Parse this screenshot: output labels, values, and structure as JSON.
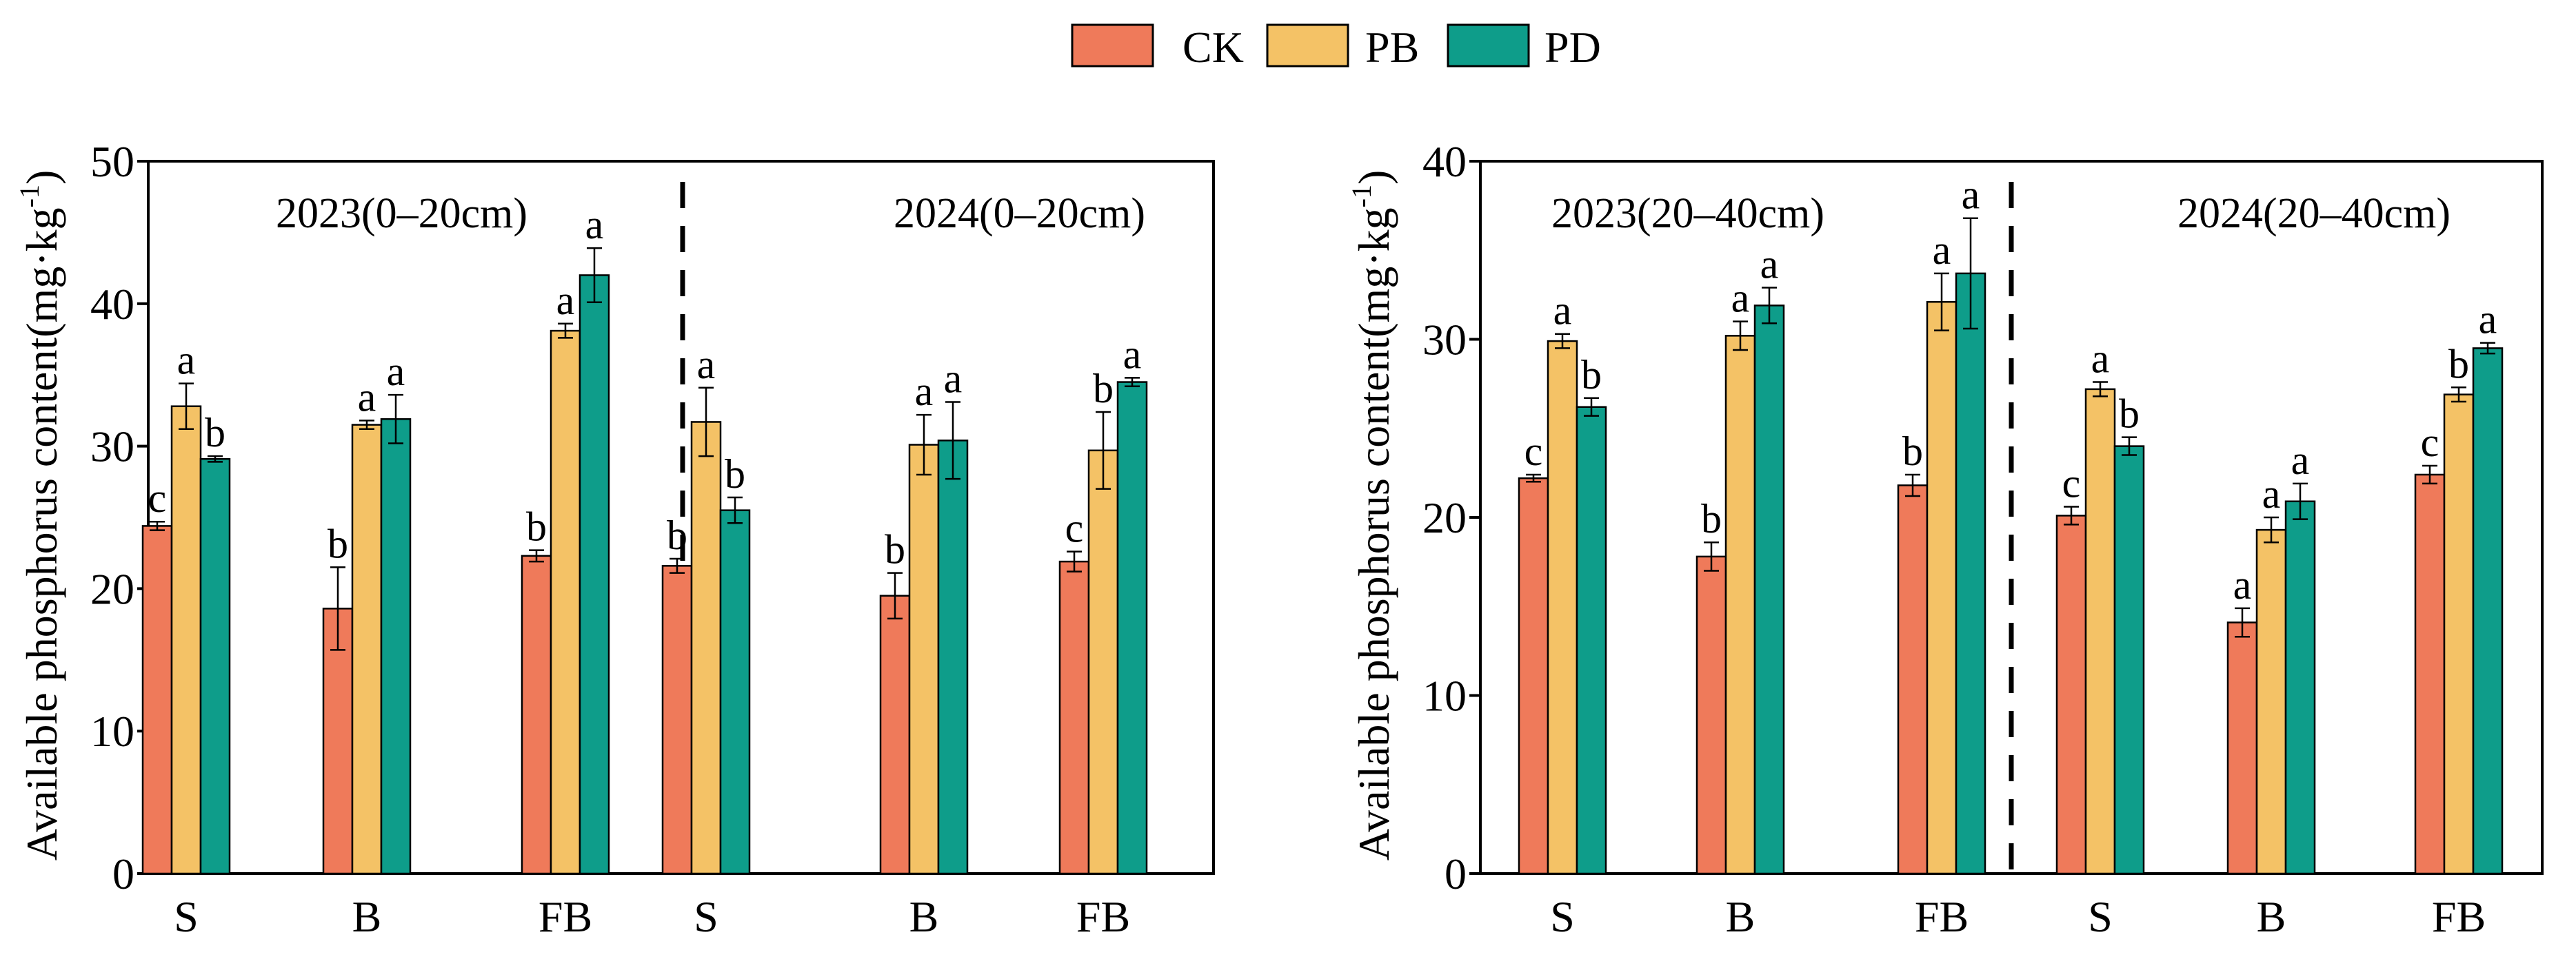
{
  "colors": {
    "CK": "#EF7A5A",
    "PB": "#F4C266",
    "PD": "#0E9D8A",
    "axis": "#000000"
  },
  "legend": {
    "entries": [
      "CK",
      "PB",
      "PD"
    ]
  },
  "chart_data": [
    {
      "type": "bar",
      "ylabel": "Available phosphorus content(mg·kg",
      "ylabel_sup": "-1",
      "ylabel_close": ")",
      "ylim": [
        0,
        50
      ],
      "yticks": [
        0,
        10,
        20,
        30,
        40,
        50
      ],
      "categories": [
        "S",
        "B",
        "FB",
        "S",
        "B",
        "FB"
      ],
      "groups": [
        "2023(0–20cm)",
        "2024(0–20cm)"
      ],
      "series": [
        {
          "name": "CK",
          "values": [
            24.4,
            18.6,
            22.3,
            21.6,
            19.5,
            21.9
          ],
          "errors": [
            0.3,
            2.9,
            0.4,
            0.5,
            1.6,
            0.7
          ],
          "letters": [
            "c",
            "b",
            "b",
            "b",
            "b",
            "c"
          ]
        },
        {
          "name": "PB",
          "values": [
            32.8,
            31.5,
            38.1,
            31.7,
            30.1,
            29.7
          ],
          "errors": [
            1.6,
            0.3,
            0.5,
            2.4,
            2.1,
            2.7
          ],
          "letters": [
            "a",
            "a",
            "a",
            "a",
            "a",
            "b"
          ]
        },
        {
          "name": "PD",
          "values": [
            29.1,
            31.9,
            42.0,
            25.5,
            30.4,
            34.5
          ],
          "errors": [
            0.2,
            1.7,
            1.9,
            0.9,
            2.7,
            0.3
          ],
          "letters": [
            "b",
            "a",
            "a",
            "b",
            "a",
            "a"
          ]
        }
      ]
    },
    {
      "type": "bar",
      "ylabel": "Available phosphorus content(mg·kg",
      "ylabel_sup": "-1",
      "ylabel_close": ")",
      "ylim": [
        0,
        40
      ],
      "yticks": [
        0,
        10,
        20,
        30,
        40
      ],
      "categories": [
        "S",
        "B",
        "FB",
        "S",
        "B",
        "FB"
      ],
      "groups": [
        "2023(20–40cm)",
        "2024(20–40cm)"
      ],
      "series": [
        {
          "name": "CK",
          "values": [
            22.2,
            17.8,
            21.8,
            20.1,
            14.1,
            22.4
          ],
          "errors": [
            0.2,
            0.8,
            0.6,
            0.5,
            0.8,
            0.5
          ],
          "letters": [
            "c",
            "b",
            "b",
            "c",
            "a",
            "c"
          ]
        },
        {
          "name": "PB",
          "values": [
            29.9,
            30.2,
            32.1,
            27.2,
            19.3,
            26.9
          ],
          "errors": [
            0.4,
            0.8,
            1.6,
            0.4,
            0.7,
            0.4
          ],
          "letters": [
            "a",
            "a",
            "a",
            "a",
            "a",
            "b"
          ]
        },
        {
          "name": "PD",
          "values": [
            26.2,
            31.9,
            33.7,
            24.0,
            20.9,
            29.5
          ],
          "errors": [
            0.5,
            1.0,
            3.1,
            0.5,
            1.0,
            0.3
          ],
          "letters": [
            "b",
            "a",
            "a",
            "b",
            "a",
            "a"
          ]
        }
      ]
    }
  ]
}
